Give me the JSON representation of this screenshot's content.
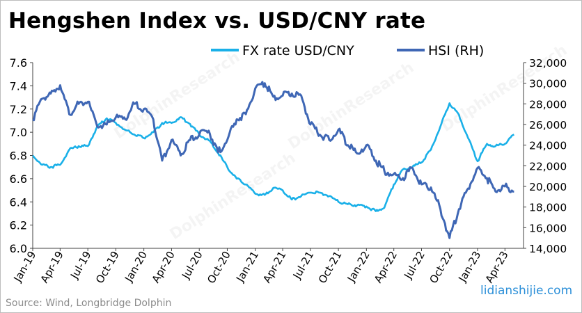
{
  "title": "Hengshen Index vs. USD/CNY rate",
  "source": "Source: Wind, Longbridge Dolphin",
  "watermark": "lidianshijie.com",
  "background_watermark": "DolphinResearch",
  "colors": {
    "fx": "#1ab0e8",
    "hsi": "#3f67b5",
    "axis": "#404040",
    "text": "#000000"
  },
  "chart_data": {
    "type": "line",
    "title": "Hengshen Index vs. USD/CNY rate",
    "legend_position": "top-right",
    "grid": false,
    "x_ticks": [
      "Jan-19",
      "Apr-19",
      "Jul-19",
      "Oct-19",
      "Jan-20",
      "Apr-20",
      "Jul-20",
      "Oct-20",
      "Jan-21",
      "Apr-21",
      "Jul-21",
      "Oct-21",
      "Jan-22",
      "Apr-22",
      "Jul-22",
      "Oct-22",
      "Jan-23",
      "Apr-23"
    ],
    "y_left": {
      "ticks": [
        "6.0",
        "6.2",
        "6.4",
        "6.6",
        "6.8",
        "7.0",
        "7.2",
        "7.4",
        "7.6"
      ],
      "lim": [
        6.0,
        7.6
      ]
    },
    "y_right": {
      "ticks": [
        "14,000",
        "16,000",
        "18,000",
        "20,000",
        "22,000",
        "24,000",
        "26,000",
        "28,000",
        "30,000",
        "32,000"
      ],
      "lim": [
        14000,
        32000
      ]
    },
    "series": [
      {
        "name": "FX rate USD/CNY",
        "axis": "left",
        "x": [
          "2019-01",
          "2019-02",
          "2019-03",
          "2019-04",
          "2019-05",
          "2019-06",
          "2019-07",
          "2019-08",
          "2019-09",
          "2019-10",
          "2019-11",
          "2019-12",
          "2020-01",
          "2020-02",
          "2020-03",
          "2020-04",
          "2020-05",
          "2020-06",
          "2020-07",
          "2020-08",
          "2020-09",
          "2020-10",
          "2020-11",
          "2020-12",
          "2021-01",
          "2021-02",
          "2021-03",
          "2021-04",
          "2021-05",
          "2021-06",
          "2021-07",
          "2021-08",
          "2021-09",
          "2021-10",
          "2021-11",
          "2021-12",
          "2022-01",
          "2022-02",
          "2022-03",
          "2022-04",
          "2022-05",
          "2022-06",
          "2022-07",
          "2022-08",
          "2022-09",
          "2022-10",
          "2022-11",
          "2022-12",
          "2023-01",
          "2023-02",
          "2023-03",
          "2023-04",
          "2023-05"
        ],
        "values": [
          6.8,
          6.72,
          6.7,
          6.72,
          6.85,
          6.88,
          6.88,
          7.05,
          7.12,
          7.08,
          7.02,
          6.98,
          6.95,
          7.0,
          7.08,
          7.08,
          7.13,
          7.07,
          6.98,
          6.93,
          6.82,
          6.7,
          6.6,
          6.55,
          6.47,
          6.46,
          6.52,
          6.5,
          6.42,
          6.45,
          6.48,
          6.48,
          6.45,
          6.4,
          6.38,
          6.37,
          6.36,
          6.32,
          6.35,
          6.55,
          6.68,
          6.7,
          6.74,
          6.85,
          7.05,
          7.25,
          7.15,
          6.95,
          6.75,
          6.9,
          6.88,
          6.9,
          6.98
        ]
      },
      {
        "name": "HSI (RH)",
        "axis": "right",
        "x": [
          "2019-01",
          "2019-02",
          "2019-03",
          "2019-04",
          "2019-05",
          "2019-06",
          "2019-07",
          "2019-08",
          "2019-09",
          "2019-10",
          "2019-11",
          "2019-12",
          "2020-01",
          "2020-02",
          "2020-03",
          "2020-04",
          "2020-05",
          "2020-06",
          "2020-07",
          "2020-08",
          "2020-09",
          "2020-10",
          "2020-11",
          "2020-12",
          "2021-01",
          "2021-02",
          "2021-03",
          "2021-04",
          "2021-05",
          "2021-06",
          "2021-07",
          "2021-08",
          "2021-09",
          "2021-10",
          "2021-11",
          "2021-12",
          "2022-01",
          "2022-02",
          "2022-03",
          "2022-04",
          "2022-05",
          "2022-06",
          "2022-07",
          "2022-08",
          "2022-09",
          "2022-10",
          "2022-11",
          "2022-12",
          "2023-01",
          "2023-02",
          "2023-03",
          "2023-04",
          "2023-05"
        ],
        "values": [
          26500,
          28500,
          29000,
          29800,
          27000,
          28000,
          28200,
          25800,
          26000,
          26700,
          26500,
          28000,
          27500,
          26500,
          22500,
          24500,
          23000,
          24500,
          25000,
          25400,
          23300,
          24500,
          26500,
          27000,
          29500,
          30000,
          28700,
          28800,
          29000,
          28800,
          26000,
          25000,
          24500,
          25500,
          24000,
          23200,
          24000,
          22500,
          21500,
          21200,
          20800,
          21800,
          20200,
          19900,
          17800,
          15000,
          17800,
          19800,
          21800,
          20800,
          19500,
          20000,
          19500
        ]
      }
    ]
  }
}
